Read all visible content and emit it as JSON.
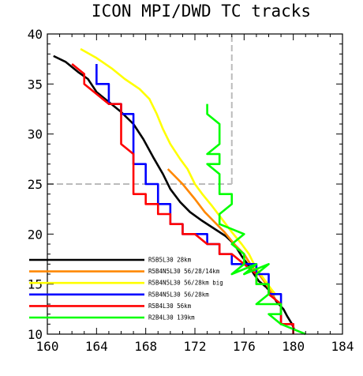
{
  "chart_data": {
    "type": "line",
    "title": "ICON MPI/DWD TC tracks",
    "xlim": [
      160,
      184
    ],
    "ylim": [
      10,
      40
    ],
    "xticks": [
      160,
      164,
      168,
      172,
      176,
      180,
      184
    ],
    "yticks": [
      10,
      15,
      20,
      25,
      30,
      35,
      40
    ],
    "grid": false,
    "legend_position": "lower-left",
    "reference_lines": [
      {
        "style": "dashed",
        "color": "#bbbbbb",
        "points": [
          [
            160,
            25
          ],
          [
            175,
            25
          ]
        ]
      },
      {
        "style": "dashed",
        "color": "#bbbbbb",
        "points": [
          [
            175,
            25
          ],
          [
            175,
            40
          ]
        ]
      }
    ],
    "series": [
      {
        "name": "R5B5L30 28km",
        "color": "#000000",
        "points": [
          [
            160.5,
            37.8
          ],
          [
            161.5,
            37.2
          ],
          [
            162.5,
            36.2
          ],
          [
            163.3,
            35.5
          ],
          [
            164,
            34.2
          ],
          [
            165,
            33.2
          ],
          [
            166,
            32.2
          ],
          [
            167,
            31
          ],
          [
            167.8,
            29.5
          ],
          [
            168.6,
            27.7
          ],
          [
            169.4,
            26
          ],
          [
            170,
            24.5
          ],
          [
            170.8,
            23.2
          ],
          [
            171.6,
            22.2
          ],
          [
            172.5,
            21.4
          ],
          [
            173.5,
            20.6
          ],
          [
            174.5,
            19.8
          ],
          [
            175.2,
            19
          ],
          [
            175.8,
            17.8
          ],
          [
            176.4,
            16.8
          ],
          [
            176.8,
            16
          ],
          [
            177.2,
            15.3
          ],
          [
            177.8,
            14.7
          ],
          [
            178.3,
            14
          ],
          [
            178.6,
            13.3
          ],
          [
            179.2,
            12.5
          ],
          [
            179.5,
            11.8
          ],
          [
            179.9,
            11
          ],
          [
            180.1,
            10.4
          ]
        ]
      },
      {
        "name": "R5B4N5L30 56/28/14km",
        "color": "#ff8800",
        "points": [
          [
            169.8,
            26.5
          ],
          [
            171,
            25
          ],
          [
            172,
            23.5
          ],
          [
            172.8,
            22.2
          ],
          [
            173.6,
            21.2
          ],
          [
            174.4,
            20.2
          ],
          [
            175.2,
            19
          ],
          [
            176,
            18
          ],
          [
            176.6,
            16.8
          ],
          [
            177.2,
            16
          ],
          [
            177.8,
            15
          ],
          [
            178.2,
            14.2
          ],
          [
            178.5,
            13.5
          ]
        ]
      },
      {
        "name": "R5B4N5L30 56/28km big",
        "color": "#ffff00",
        "points": [
          [
            162.7,
            38.5
          ],
          [
            164,
            37.6
          ],
          [
            165.3,
            36.5
          ],
          [
            166.3,
            35.5
          ],
          [
            167.5,
            34.5
          ],
          [
            168.3,
            33.5
          ],
          [
            168.9,
            32
          ],
          [
            169.4,
            30.5
          ],
          [
            170,
            29
          ],
          [
            170.8,
            27.5
          ],
          [
            171.4,
            26.5
          ],
          [
            172,
            25
          ],
          [
            172.6,
            24
          ],
          [
            173.4,
            22.8
          ],
          [
            174.2,
            21.5
          ],
          [
            175,
            20.2
          ],
          [
            175.8,
            19
          ],
          [
            176.4,
            18
          ],
          [
            176.8,
            17
          ],
          [
            177.2,
            16.2
          ],
          [
            177.8,
            15.2
          ],
          [
            178.2,
            14.5
          ],
          [
            178.6,
            13.9
          ]
        ]
      },
      {
        "name": "R5B4N5L30 56/28km",
        "color": "#0000ff",
        "points": [
          [
            164,
            37
          ],
          [
            164,
            36
          ],
          [
            164,
            35
          ],
          [
            165,
            35
          ],
          [
            165,
            34
          ],
          [
            165,
            33
          ],
          [
            166,
            33
          ],
          [
            166,
            32
          ],
          [
            167,
            32
          ],
          [
            167,
            31
          ],
          [
            167,
            30
          ],
          [
            167,
            29
          ],
          [
            167,
            28
          ],
          [
            167,
            27
          ],
          [
            168,
            27
          ],
          [
            168,
            26
          ],
          [
            168,
            25
          ],
          [
            169,
            25
          ],
          [
            169,
            24
          ],
          [
            169,
            23
          ],
          [
            170,
            23
          ],
          [
            170,
            22
          ],
          [
            170,
            21
          ],
          [
            171,
            21
          ],
          [
            171,
            20
          ],
          [
            172,
            20
          ],
          [
            173,
            20
          ],
          [
            173,
            19
          ],
          [
            174,
            19
          ],
          [
            174,
            18
          ],
          [
            175,
            18
          ],
          [
            175,
            17
          ],
          [
            176,
            17
          ],
          [
            177,
            17
          ],
          [
            177,
            16
          ],
          [
            178,
            16
          ],
          [
            178,
            15
          ],
          [
            178,
            14
          ],
          [
            179,
            14
          ],
          [
            179,
            13
          ],
          [
            179,
            12
          ],
          [
            179,
            11
          ],
          [
            180,
            11
          ],
          [
            180,
            10
          ]
        ]
      },
      {
        "name": "R5B4L30 56km",
        "color": "#ff0000",
        "points": [
          [
            162,
            37
          ],
          [
            163,
            36
          ],
          [
            163,
            35
          ],
          [
            164,
            34
          ],
          [
            165,
            33
          ],
          [
            166,
            33
          ],
          [
            166,
            32
          ],
          [
            166,
            31
          ],
          [
            166,
            30
          ],
          [
            166,
            29
          ],
          [
            167,
            28
          ],
          [
            167,
            27
          ],
          [
            167,
            26
          ],
          [
            167,
            25
          ],
          [
            167,
            24
          ],
          [
            168,
            24
          ],
          [
            168,
            23
          ],
          [
            169,
            23
          ],
          [
            169,
            22
          ],
          [
            170,
            22
          ],
          [
            170,
            21
          ],
          [
            171,
            21
          ],
          [
            171,
            20
          ],
          [
            172,
            20
          ],
          [
            173,
            19
          ],
          [
            174,
            19
          ],
          [
            174,
            18
          ],
          [
            175,
            18
          ],
          [
            176,
            17
          ],
          [
            177,
            16
          ],
          [
            177,
            15
          ],
          [
            178,
            15
          ],
          [
            178,
            14
          ],
          [
            179,
            13
          ],
          [
            179,
            12
          ],
          [
            179,
            11
          ],
          [
            180,
            11
          ],
          [
            180,
            10
          ]
        ]
      },
      {
        "name": "R2B4L30 139km",
        "color": "#00ff00",
        "points": [
          [
            173,
            33
          ],
          [
            173,
            32
          ],
          [
            174,
            31
          ],
          [
            174,
            30
          ],
          [
            174,
            29
          ],
          [
            173,
            28
          ],
          [
            174,
            28
          ],
          [
            174,
            27
          ],
          [
            173,
            27
          ],
          [
            174,
            26
          ],
          [
            174,
            25
          ],
          [
            174,
            24
          ],
          [
            175,
            24
          ],
          [
            175,
            23
          ],
          [
            174,
            22
          ],
          [
            174,
            21
          ],
          [
            176,
            20
          ],
          [
            175,
            19
          ],
          [
            176,
            18
          ],
          [
            176,
            17
          ],
          [
            175,
            16
          ],
          [
            177,
            17
          ],
          [
            176,
            16
          ],
          [
            178,
            17
          ],
          [
            177,
            16
          ],
          [
            177,
            15
          ],
          [
            178,
            15
          ],
          [
            178,
            14
          ],
          [
            177,
            13
          ],
          [
            179,
            13
          ],
          [
            179,
            12
          ],
          [
            178,
            12
          ],
          [
            179,
            11
          ],
          [
            181,
            10
          ]
        ]
      }
    ]
  }
}
